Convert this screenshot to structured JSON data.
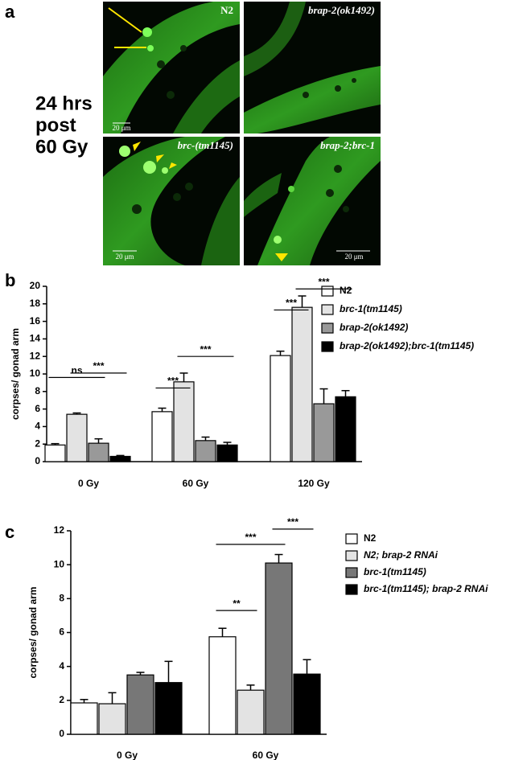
{
  "panel_a": {
    "label": "a",
    "caption_lines": [
      "24 hrs",
      "post",
      "60 Gy"
    ],
    "images": [
      {
        "label": "N2",
        "scale": "20 μm"
      },
      {
        "label": "brap-2(ok1492)"
      },
      {
        "label": "brc-(tm1145)",
        "scale": "20 μm"
      },
      {
        "label": "brap-2;brc-1",
        "scale": "20 μm"
      }
    ]
  },
  "panel_b": {
    "label": "b"
  },
  "panel_c": {
    "label": "c"
  },
  "chart_data": [
    {
      "type": "bar",
      "ylabel": "corpses/ gonad  arm",
      "categories": [
        "0 Gy",
        "60 Gy",
        "120 Gy"
      ],
      "series": [
        {
          "name": "N2",
          "color": "#ffffff",
          "values": [
            1.9,
            5.7,
            12.1
          ],
          "errors": [
            0.15,
            0.4,
            0.5
          ]
        },
        {
          "name": "brc-1(tm1145)",
          "color": "#e3e3e3",
          "values": [
            5.4,
            9.1,
            17.6
          ],
          "errors": [
            0.15,
            1.0,
            1.3
          ]
        },
        {
          "name": "brap-2(ok1492)",
          "color": "#999999",
          "values": [
            2.1,
            2.4,
            6.6
          ],
          "errors": [
            0.5,
            0.4,
            1.7
          ]
        },
        {
          "name": "brap-2(ok1492);brc-1(tm1145)",
          "color": "#000000",
          "values": [
            0.6,
            1.9,
            7.4
          ],
          "errors": [
            0.1,
            0.3,
            0.7
          ]
        }
      ],
      "ylim": [
        0,
        20
      ],
      "yticks": [
        0,
        2,
        4,
        6,
        8,
        10,
        12,
        14,
        16,
        18,
        20
      ],
      "annotations": [
        "ns",
        "***",
        "***",
        "***",
        "***",
        "***"
      ]
    },
    {
      "type": "bar",
      "ylabel": "corpses/ gonad arm",
      "categories": [
        "0 Gy",
        "60 Gy"
      ],
      "series": [
        {
          "name": "N2",
          "color": "#ffffff",
          "values": [
            1.85,
            5.75
          ],
          "errors": [
            0.2,
            0.5
          ]
        },
        {
          "name": "N2; brap-2 RNAi",
          "color": "#e3e3e3",
          "values": [
            1.8,
            2.6
          ],
          "errors": [
            0.65,
            0.3
          ]
        },
        {
          "name": "brc-1(tm1145)",
          "color": "#777777",
          "values": [
            3.5,
            10.1
          ],
          "errors": [
            0.15,
            0.5
          ]
        },
        {
          "name": "brc-1(tm1145); brap-2 RNAi",
          "color": "#000000",
          "values": [
            3.05,
            3.55
          ],
          "errors": [
            1.25,
            0.85
          ]
        }
      ],
      "ylim": [
        0,
        12
      ],
      "yticks": [
        0,
        2,
        4,
        6,
        8,
        10,
        12
      ],
      "annotations": [
        "**",
        "***",
        "***"
      ]
    }
  ]
}
